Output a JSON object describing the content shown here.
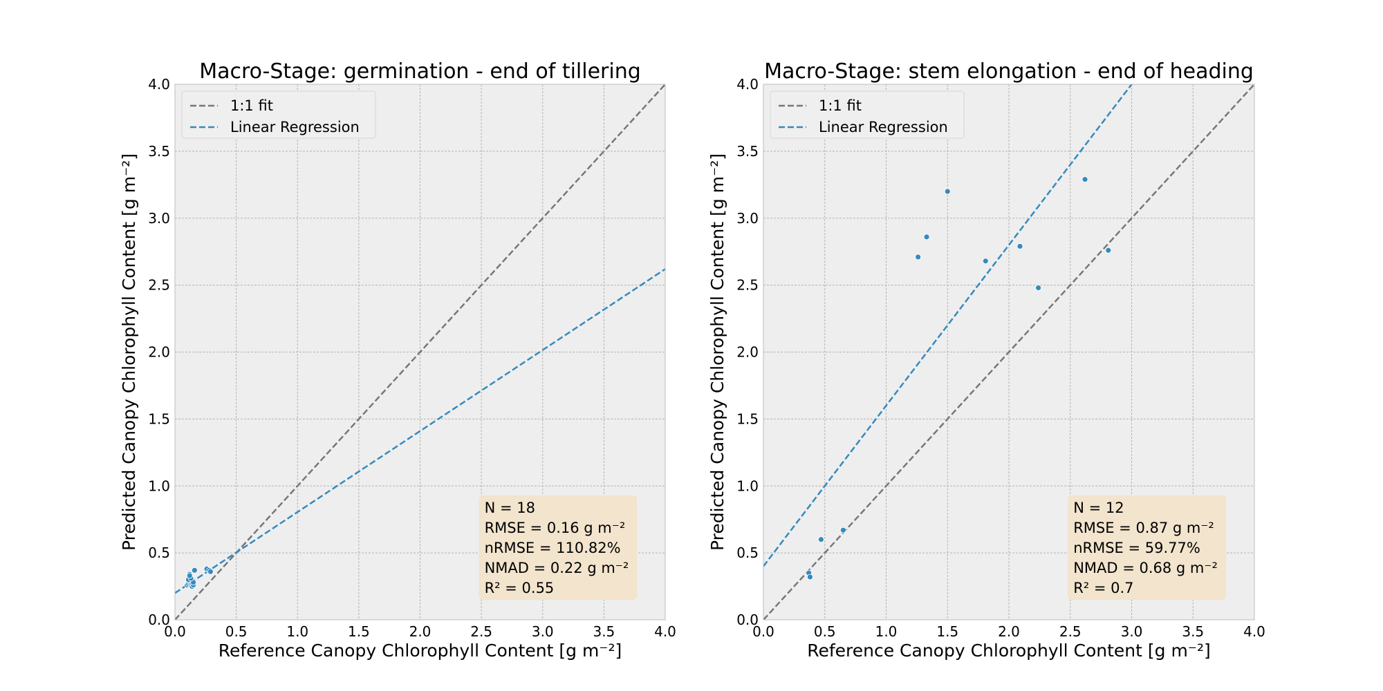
{
  "chart_data": [
    {
      "type": "scatter",
      "title": "Macro-Stage: germination - end of tillering",
      "xlabel": "Reference Canopy Chlorophyll Content [g m⁻²]",
      "ylabel": "Predicted Canopy Chlorophyll Content [g m⁻²]",
      "xlim": [
        0,
        4
      ],
      "ylim": [
        0,
        4
      ],
      "xticks": [
        "0.0",
        "0.5",
        "1.0",
        "1.5",
        "2.0",
        "2.5",
        "3.0",
        "3.5",
        "4.0"
      ],
      "yticks": [
        "0.0",
        "0.5",
        "1.0",
        "1.5",
        "2.0",
        "2.5",
        "3.0",
        "3.5",
        "4.0"
      ],
      "grid": true,
      "legend_position": "top-left",
      "legend": [
        "1:1 fit",
        "Linear Regression"
      ],
      "regression": {
        "intercept": 0.2,
        "slope": 0.605
      },
      "points": [
        {
          "x": 0.1,
          "y": 0.26
        },
        {
          "x": 0.11,
          "y": 0.27
        },
        {
          "x": 0.12,
          "y": 0.28
        },
        {
          "x": 0.12,
          "y": 0.32
        },
        {
          "x": 0.12,
          "y": 0.34
        },
        {
          "x": 0.13,
          "y": 0.26
        },
        {
          "x": 0.13,
          "y": 0.29
        },
        {
          "x": 0.14,
          "y": 0.25
        },
        {
          "x": 0.14,
          "y": 0.27
        },
        {
          "x": 0.15,
          "y": 0.26
        },
        {
          "x": 0.15,
          "y": 0.28
        },
        {
          "x": 0.11,
          "y": 0.3
        },
        {
          "x": 0.13,
          "y": 0.31
        },
        {
          "x": 0.16,
          "y": 0.37
        },
        {
          "x": 0.26,
          "y": 0.38
        },
        {
          "x": 0.28,
          "y": 0.37
        },
        {
          "x": 0.29,
          "y": 0.36
        },
        {
          "x": 0.12,
          "y": 0.33
        }
      ],
      "stats": {
        "n": "N = 18",
        "rmse": "RMSE = 0.16 g m⁻²",
        "nrmse": "nRMSE = 110.82%",
        "nmad": "NMAD = 0.22 g m⁻²",
        "r2": "R² = 0.55"
      }
    },
    {
      "type": "scatter",
      "title": "Macro-Stage: stem elongation - end of heading",
      "xlabel": "Reference Canopy Chlorophyll Content [g m⁻²]",
      "ylabel": "Predicted Canopy Chlorophyll Content [g m⁻²]",
      "xlim": [
        0,
        4
      ],
      "ylim": [
        0,
        4
      ],
      "xticks": [
        "0.0",
        "0.5",
        "1.0",
        "1.5",
        "2.0",
        "2.5",
        "3.0",
        "3.5",
        "4.0"
      ],
      "yticks": [
        "0.0",
        "0.5",
        "1.0",
        "1.5",
        "2.0",
        "2.5",
        "3.0",
        "3.5",
        "4.0"
      ],
      "grid": true,
      "legend_position": "top-left",
      "legend": [
        "1:1 fit",
        "Linear Regression"
      ],
      "regression": {
        "intercept": 0.4,
        "slope": 1.2
      },
      "points": [
        {
          "x": 0.37,
          "y": 0.35
        },
        {
          "x": 0.38,
          "y": 0.32
        },
        {
          "x": 0.47,
          "y": 0.6
        },
        {
          "x": 0.65,
          "y": 0.67
        },
        {
          "x": 1.26,
          "y": 2.71
        },
        {
          "x": 1.33,
          "y": 2.86
        },
        {
          "x": 1.5,
          "y": 3.2
        },
        {
          "x": 1.81,
          "y": 2.68
        },
        {
          "x": 2.09,
          "y": 2.79
        },
        {
          "x": 2.24,
          "y": 2.48
        },
        {
          "x": 2.62,
          "y": 3.29
        },
        {
          "x": 2.81,
          "y": 2.76
        }
      ],
      "stats": {
        "n": "N = 12",
        "rmse": "RMSE = 0.87 g m⁻²",
        "nrmse": "nRMSE = 59.77%",
        "nmad": "NMAD = 0.68 g m⁻²",
        "r2": "R² = 0.7"
      }
    }
  ],
  "colors": {
    "axes_bg": "#eeeeee",
    "grid": "#b2b2b2",
    "one_to_one": "#777777",
    "regression": "#348abd",
    "points": "#348abd",
    "stats_box": "#f2e4cd"
  }
}
